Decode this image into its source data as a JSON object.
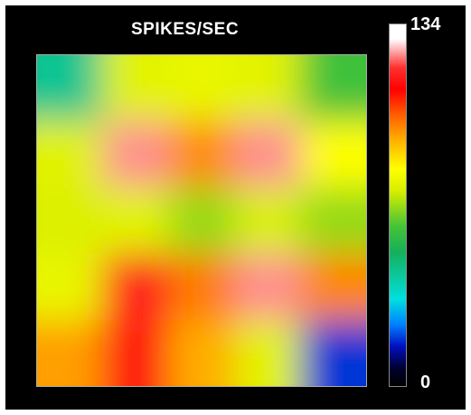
{
  "chart_data": {
    "type": "heatmap",
    "title": "SPIKES/SEC",
    "colorbar": {
      "min_label": "0",
      "max_label": "134",
      "min": 0,
      "max": 134,
      "colors": [
        "#000000",
        "#0010c0",
        "#0080ff",
        "#00e0e0",
        "#15b05a",
        "#44c238",
        "#d8ee00",
        "#ffff00",
        "#ffb000",
        "#ff6a00",
        "#ff0000",
        "#ff3030",
        "#ffffff"
      ]
    },
    "grid_size": [
      5,
      5
    ],
    "grid": [
      [
        40,
        70,
        72,
        70,
        55
      ],
      [
        70,
        128,
        95,
        128,
        78
      ],
      [
        68,
        70,
        62,
        68,
        62
      ],
      [
        72,
        118,
        98,
        128,
        96
      ],
      [
        92,
        115,
        90,
        70,
        15
      ]
    ],
    "grid_note": "rows top-to-bottom, values in spikes/sec estimated from colors"
  }
}
